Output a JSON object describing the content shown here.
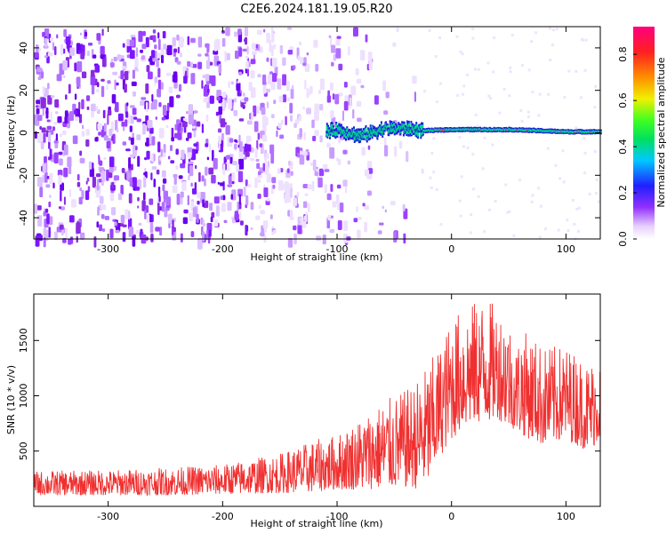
{
  "title": "C2E6.2024.181.19.05.R20",
  "chart_data": [
    {
      "type": "heatmap",
      "xlabel": "Height of straight line (km)",
      "ylabel": "Frequency (Hz)",
      "xlim": [
        -365,
        130
      ],
      "ylim": [
        -50,
        50
      ],
      "xticks": [
        -300,
        -200,
        -100,
        0,
        100
      ],
      "yticks": [
        -40,
        -20,
        0,
        20,
        40
      ],
      "colorbar": {
        "label": "Normalized spectral amplitude",
        "range": [
          0,
          0.92
        ],
        "ticks": [
          "0.0",
          "0.2",
          "0.4",
          "0.6",
          "0.8"
        ]
      },
      "signal_line": {
        "description_points": [
          [
            -110,
            0.5
          ],
          [
            -100,
            1.5
          ],
          [
            -80,
            -1.5
          ],
          [
            -60,
            2
          ],
          [
            -40,
            2
          ],
          [
            -25,
            1
          ],
          [
            0,
            1.5
          ],
          [
            50,
            1.5
          ],
          [
            100,
            0.5
          ],
          [
            130,
            0.5
          ]
        ]
      },
      "noise_region_xlim": [
        -365,
        -25
      ],
      "colors": {
        "noise": "#8a2be2",
        "signal": "#00e08a",
        "peak": "#ff2040"
      }
    },
    {
      "type": "line",
      "xlabel": "Height of straight line (km)",
      "ylabel": "SNR (10 * v/v)",
      "xlim": [
        -365,
        130
      ],
      "ylim": [
        0,
        1920
      ],
      "xticks": [
        -300,
        -200,
        -100,
        0,
        100
      ],
      "yticks": [
        500,
        1000,
        1500
      ],
      "color": "#f03030",
      "envelope": {
        "x": [
          -365,
          -300,
          -250,
          -200,
          -150,
          -120,
          -100,
          -80,
          -60,
          -40,
          -30,
          -20,
          -10,
          0,
          10,
          20,
          30,
          40,
          50,
          55,
          60,
          70,
          80,
          100,
          120,
          130
        ],
        "low": [
          100,
          100,
          100,
          110,
          120,
          130,
          150,
          150,
          160,
          170,
          160,
          200,
          450,
          600,
          700,
          750,
          750,
          800,
          700,
          700,
          650,
          600,
          550,
          600,
          500,
          600
        ],
        "high": [
          320,
          330,
          350,
          380,
          480,
          600,
          650,
          800,
          950,
          1050,
          1150,
          1300,
          1450,
          1700,
          1800,
          1850,
          1900,
          1800,
          1750,
          1400,
          1600,
          1550,
          1450,
          1450,
          1300,
          1400
        ]
      }
    }
  ]
}
